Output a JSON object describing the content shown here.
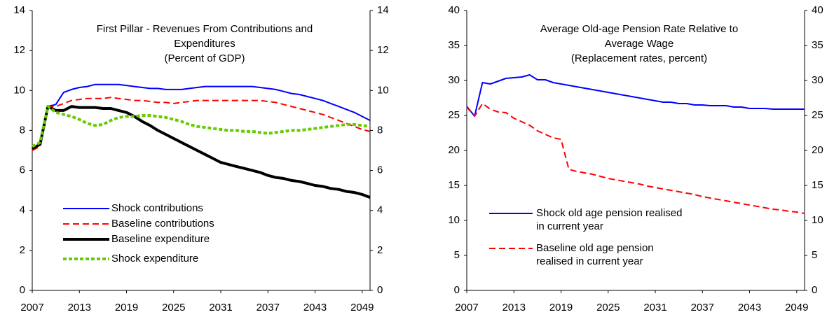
{
  "chart_data": [
    {
      "type": "line",
      "title": [
        "First Pillar -  Revenues From Contributions and",
        "Expenditures",
        "(Percent of GDP)"
      ],
      "x": [
        2007,
        2008,
        2009,
        2010,
        2011,
        2012,
        2013,
        2014,
        2015,
        2016,
        2017,
        2018,
        2019,
        2020,
        2021,
        2022,
        2023,
        2024,
        2025,
        2026,
        2027,
        2028,
        2029,
        2030,
        2031,
        2032,
        2033,
        2034,
        2035,
        2036,
        2037,
        2038,
        2039,
        2040,
        2041,
        2042,
        2043,
        2044,
        2045,
        2046,
        2047,
        2048,
        2049,
        2050
      ],
      "xlim": [
        2007,
        2050
      ],
      "xticks": [
        2007,
        2013,
        2019,
        2025,
        2031,
        2037,
        2043,
        2049
      ],
      "ylim": [
        0,
        14
      ],
      "yticks": [
        0,
        2,
        4,
        6,
        8,
        10,
        12,
        14
      ],
      "y2lim": [
        0,
        14
      ],
      "y2ticks": [
        0,
        2,
        4,
        6,
        8,
        10,
        12,
        14
      ],
      "series": [
        {
          "name": "Shock contributions",
          "color": "#0000ff",
          "style": "solid",
          "width": 2,
          "values": [
            7.1,
            7.3,
            9.2,
            9.3,
            9.9,
            10.05,
            10.15,
            10.2,
            10.3,
            10.3,
            10.3,
            10.3,
            10.25,
            10.2,
            10.15,
            10.1,
            10.1,
            10.05,
            10.05,
            10.05,
            10.1,
            10.15,
            10.2,
            10.2,
            10.2,
            10.2,
            10.2,
            10.2,
            10.2,
            10.15,
            10.1,
            10.05,
            9.95,
            9.85,
            9.8,
            9.7,
            9.6,
            9.5,
            9.35,
            9.2,
            9.05,
            8.9,
            8.7,
            8.5
          ]
        },
        {
          "name": "Baseline contributions",
          "color": "#ff0000",
          "style": "dashed",
          "width": 2,
          "values": [
            7.0,
            7.2,
            9.2,
            9.2,
            9.35,
            9.5,
            9.55,
            9.6,
            9.6,
            9.6,
            9.65,
            9.6,
            9.55,
            9.5,
            9.5,
            9.45,
            9.4,
            9.4,
            9.35,
            9.4,
            9.45,
            9.5,
            9.5,
            9.5,
            9.5,
            9.5,
            9.5,
            9.5,
            9.5,
            9.5,
            9.45,
            9.4,
            9.3,
            9.2,
            9.1,
            9.0,
            8.9,
            8.8,
            8.65,
            8.5,
            8.35,
            8.2,
            8.05,
            7.95
          ]
        },
        {
          "name": "Baseline expenditure",
          "color": "#000000",
          "style": "solid",
          "width": 4,
          "values": [
            7.1,
            7.3,
            9.2,
            9.0,
            9.0,
            9.2,
            9.15,
            9.15,
            9.15,
            9.1,
            9.1,
            9.0,
            8.9,
            8.7,
            8.45,
            8.25,
            8.0,
            7.8,
            7.6,
            7.4,
            7.2,
            7.0,
            6.8,
            6.6,
            6.4,
            6.3,
            6.2,
            6.1,
            6.0,
            5.9,
            5.75,
            5.65,
            5.6,
            5.5,
            5.45,
            5.35,
            5.25,
            5.2,
            5.1,
            5.05,
            4.95,
            4.9,
            4.8,
            4.65
          ]
        },
        {
          "name": "Shock expenditure",
          "color": "#66cc00",
          "style": "dotted",
          "width": 4,
          "values": [
            7.2,
            7.4,
            9.2,
            8.9,
            8.8,
            8.7,
            8.55,
            8.35,
            8.25,
            8.3,
            8.5,
            8.65,
            8.7,
            8.7,
            8.75,
            8.75,
            8.7,
            8.65,
            8.55,
            8.45,
            8.3,
            8.2,
            8.15,
            8.1,
            8.05,
            8.0,
            8.0,
            7.95,
            7.95,
            7.9,
            7.85,
            7.9,
            7.95,
            8.0,
            8.0,
            8.05,
            8.1,
            8.15,
            8.2,
            8.25,
            8.3,
            8.3,
            8.25,
            8.2
          ]
        }
      ]
    },
    {
      "type": "line",
      "title": [
        "Average Old-age Pension Rate Relative to",
        "Average Wage",
        "(Replacement rates, percent)"
      ],
      "x": [
        2007,
        2008,
        2009,
        2010,
        2011,
        2012,
        2013,
        2014,
        2015,
        2016,
        2017,
        2018,
        2019,
        2020,
        2021,
        2022,
        2023,
        2024,
        2025,
        2026,
        2027,
        2028,
        2029,
        2030,
        2031,
        2032,
        2033,
        2034,
        2035,
        2036,
        2037,
        2038,
        2039,
        2040,
        2041,
        2042,
        2043,
        2044,
        2045,
        2046,
        2047,
        2048,
        2049,
        2050
      ],
      "xlim": [
        2007,
        2050
      ],
      "xticks": [
        2007,
        2013,
        2019,
        2025,
        2031,
        2037,
        2043,
        2049
      ],
      "ylim": [
        0,
        40
      ],
      "yticks": [
        0,
        5,
        10,
        15,
        20,
        25,
        30,
        35,
        40
      ],
      "y2lim": [
        0,
        40
      ],
      "y2ticks": [
        0,
        5,
        10,
        15,
        20,
        25,
        30,
        35,
        40
      ],
      "series": [
        {
          "name": "Shock old age pension realised in current year",
          "color": "#0000ff",
          "style": "solid",
          "width": 2,
          "values": [
            26.3,
            24.9,
            29.7,
            29.5,
            29.9,
            30.3,
            30.4,
            30.5,
            30.8,
            30.1,
            30.1,
            29.7,
            29.5,
            29.3,
            29.1,
            28.9,
            28.7,
            28.5,
            28.3,
            28.1,
            27.9,
            27.7,
            27.5,
            27.3,
            27.1,
            26.9,
            26.9,
            26.7,
            26.7,
            26.5,
            26.5,
            26.4,
            26.4,
            26.4,
            26.2,
            26.2,
            26.0,
            26.0,
            26.0,
            25.9,
            25.9,
            25.9,
            25.9,
            25.9
          ]
        },
        {
          "name": "Baseline old age pension realised in current year",
          "color": "#ff0000",
          "style": "dashed",
          "width": 2,
          "values": [
            26.2,
            24.9,
            26.7,
            25.9,
            25.5,
            25.4,
            24.6,
            24.1,
            23.6,
            22.8,
            22.3,
            21.8,
            21.6,
            17.3,
            17.0,
            16.8,
            16.6,
            16.3,
            16.0,
            15.8,
            15.6,
            15.4,
            15.2,
            14.9,
            14.7,
            14.5,
            14.3,
            14.1,
            13.9,
            13.7,
            13.4,
            13.2,
            13.0,
            12.8,
            12.6,
            12.4,
            12.2,
            12.0,
            11.8,
            11.6,
            11.5,
            11.3,
            11.2,
            11.0
          ]
        }
      ]
    }
  ]
}
